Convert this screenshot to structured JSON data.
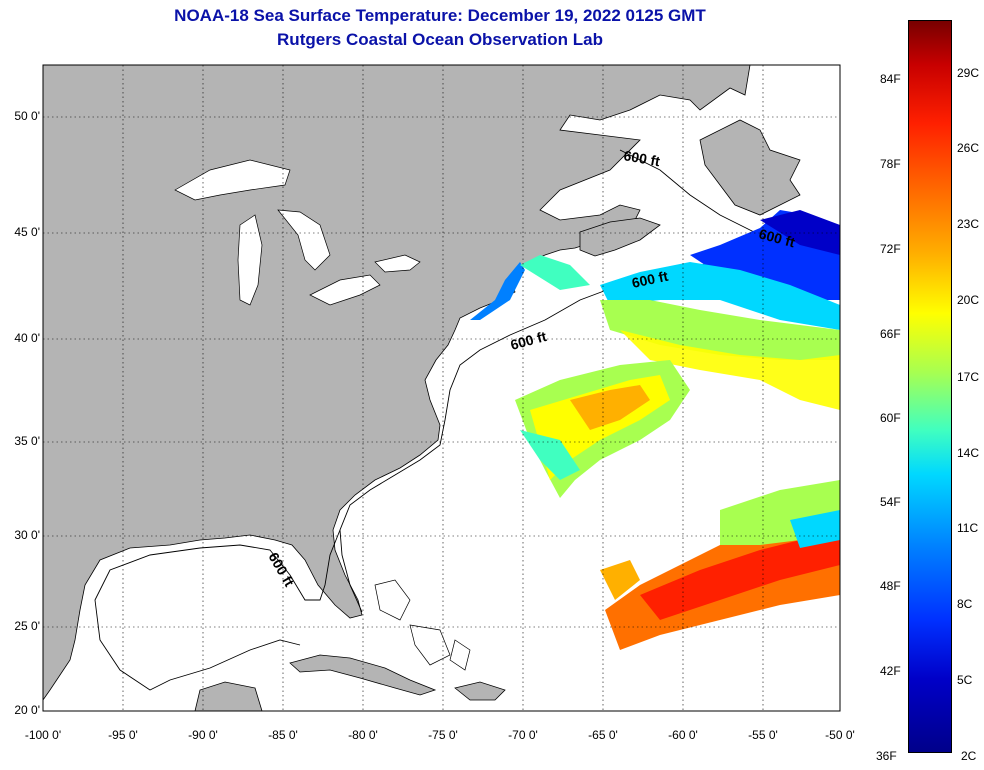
{
  "title": {
    "line1": "NOAA-18 Sea Surface Temperature:  December 19, 2022 0125 GMT",
    "line2": "Rutgers Coastal Ocean Observation Lab"
  },
  "axes": {
    "lat_labels": [
      "50 0'",
      "45 0'",
      "40 0'",
      "35 0'",
      "30 0'",
      "25 0'",
      "20 0'"
    ],
    "lon_labels": [
      "-100 0'",
      "-95 0'",
      "-90 0'",
      "-85 0'",
      "-80 0'",
      "-75 0'",
      "-70 0'",
      "-65 0'",
      "-60 0'",
      "-55 0'",
      "-50 0'"
    ],
    "lat_range": [
      20,
      52.5
    ],
    "lon_range": [
      -100,
      -50
    ]
  },
  "contour_labels": [
    "600 ft",
    "600 ft",
    "600 ft",
    "600 ft",
    "600 ft"
  ],
  "colorbar": {
    "fahrenheit": [
      "84F",
      "78F",
      "72F",
      "66F",
      "60F",
      "54F",
      "48F",
      "42F",
      "36F"
    ],
    "celsius": [
      "29C",
      "26C",
      "23C",
      "20C",
      "17C",
      "14C",
      "11C",
      "8C",
      "5C",
      "2C"
    ],
    "colors": [
      "#780000",
      "#ff2000",
      "#ff7000",
      "#ffff00",
      "#40ffc0",
      "#0080ff",
      "#0000c8",
      "#00008a"
    ]
  },
  "colors": {
    "land": "#b4b4b4",
    "title": "#0a12a8"
  }
}
